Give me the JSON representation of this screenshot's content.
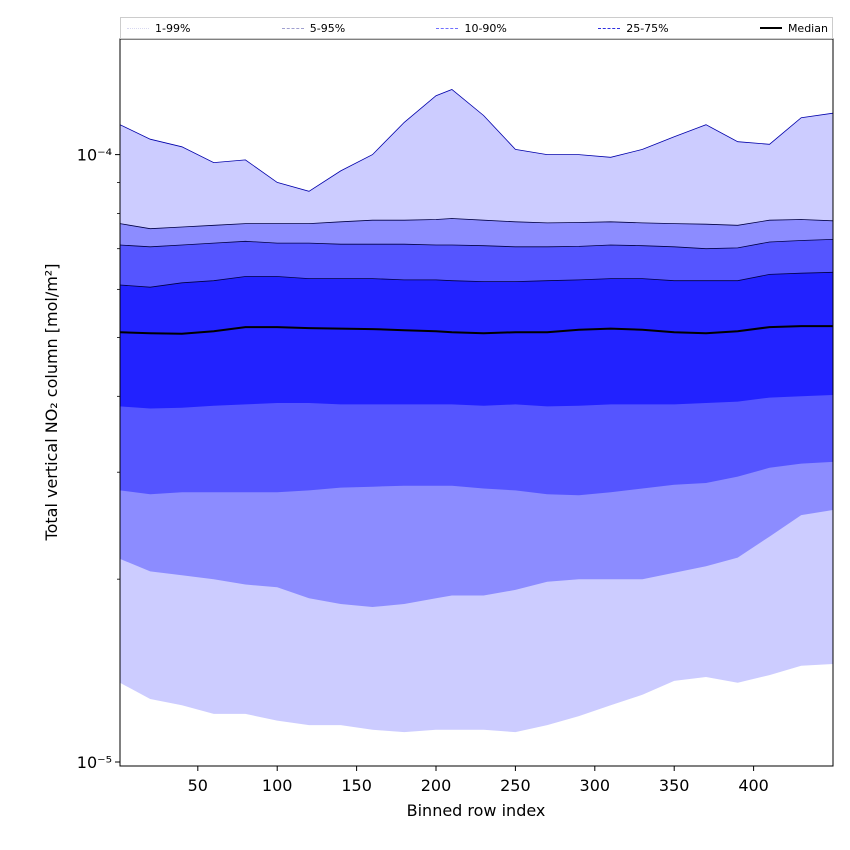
{
  "chart_data": {
    "type": "area",
    "xlabel": "Binned row index",
    "ylabel": "Total vertical NO₂ column [mol/m²]",
    "xlim": [
      1,
      450
    ],
    "ylim": [
      9.85e-06,
      0.000155
    ],
    "y_scale": "log",
    "x_ticks": [
      50,
      100,
      150,
      200,
      250,
      300,
      350,
      400
    ],
    "y_ticks": [
      {
        "value": 1e-05,
        "label": "10⁻⁵"
      },
      {
        "value": 0.0001,
        "label": "10⁻⁴"
      }
    ],
    "legend": {
      "placement": "top",
      "entries": [
        {
          "label": "1-99%",
          "style": "dotted",
          "color": "#d8d8f0"
        },
        {
          "label": "5-95%",
          "style": "dashed",
          "color": "#a0a0d0"
        },
        {
          "label": "10-90%",
          "style": "dashed",
          "color": "#7070ff"
        },
        {
          "label": "25-75%",
          "style": "dashed",
          "color": "#3030e0"
        },
        {
          "label": "Median",
          "style": "solid",
          "color": "#000000"
        }
      ]
    },
    "x": [
      1,
      20,
      40,
      60,
      80,
      100,
      120,
      140,
      160,
      180,
      200,
      210,
      230,
      250,
      270,
      290,
      310,
      330,
      350,
      370,
      390,
      410,
      430,
      450
    ],
    "series": [
      {
        "name": "1-99%",
        "fill": "#ccccff",
        "lower": [
          1.35e-05,
          1.27e-05,
          1.24e-05,
          1.2e-05,
          1.2e-05,
          1.17e-05,
          1.15e-05,
          1.15e-05,
          1.13e-05,
          1.12e-05,
          1.13e-05,
          1.13e-05,
          1.13e-05,
          1.12e-05,
          1.15e-05,
          1.19e-05,
          1.24e-05,
          1.29e-05,
          1.36e-05,
          1.38e-05,
          1.35e-05,
          1.39e-05,
          1.44e-05,
          1.45e-05
        ],
        "upper": [
          0.000112,
          0.000106,
          0.000103,
          9.7e-05,
          9.8e-05,
          9e-05,
          8.7e-05,
          9.4e-05,
          0.0001,
          0.000113,
          0.000125,
          0.000128,
          0.000116,
          0.000102,
          0.0001,
          0.0001,
          9.9e-05,
          0.000102,
          0.000107,
          0.000112,
          0.000105,
          0.000104,
          0.000115,
          0.000117
        ]
      },
      {
        "name": "5-95%",
        "fill": "#8c8cff",
        "lower": [
          2.16e-05,
          2.06e-05,
          2.03e-05,
          2e-05,
          1.96e-05,
          1.94e-05,
          1.86e-05,
          1.82e-05,
          1.8e-05,
          1.82e-05,
          1.86e-05,
          1.88e-05,
          1.88e-05,
          1.92e-05,
          1.98e-05,
          2e-05,
          2e-05,
          2e-05,
          2.05e-05,
          2.1e-05,
          2.17e-05,
          2.35e-05,
          2.55e-05,
          2.6e-05
        ],
        "upper": [
          7.7e-05,
          7.55e-05,
          7.6e-05,
          7.65e-05,
          7.7e-05,
          7.7e-05,
          7.7e-05,
          7.75e-05,
          7.8e-05,
          7.8e-05,
          7.82e-05,
          7.85e-05,
          7.8e-05,
          7.75e-05,
          7.72e-05,
          7.73e-05,
          7.75e-05,
          7.72e-05,
          7.7e-05,
          7.68e-05,
          7.65e-05,
          7.8e-05,
          7.82e-05,
          7.78e-05
        ]
      },
      {
        "name": "10-90%",
        "fill": "#5555ff",
        "lower": [
          2.8e-05,
          2.76e-05,
          2.78e-05,
          2.78e-05,
          2.78e-05,
          2.78e-05,
          2.8e-05,
          2.83e-05,
          2.84e-05,
          2.85e-05,
          2.85e-05,
          2.85e-05,
          2.82e-05,
          2.8e-05,
          2.76e-05,
          2.75e-05,
          2.78e-05,
          2.82e-05,
          2.86e-05,
          2.88e-05,
          2.95e-05,
          3.05e-05,
          3.1e-05,
          3.12e-05
        ],
        "upper": [
          7.1e-05,
          7.05e-05,
          7.1e-05,
          7.15e-05,
          7.2e-05,
          7.15e-05,
          7.15e-05,
          7.12e-05,
          7.12e-05,
          7.12e-05,
          7.1e-05,
          7.1e-05,
          7.08e-05,
          7.05e-05,
          7.05e-05,
          7.06e-05,
          7.1e-05,
          7.08e-05,
          7.05e-05,
          7e-05,
          7.02e-05,
          7.18e-05,
          7.22e-05,
          7.25e-05
        ]
      },
      {
        "name": "25-75%",
        "fill": "#2222ff",
        "lower": [
          3.85e-05,
          3.82e-05,
          3.83e-05,
          3.86e-05,
          3.88e-05,
          3.9e-05,
          3.9e-05,
          3.88e-05,
          3.88e-05,
          3.88e-05,
          3.88e-05,
          3.88e-05,
          3.86e-05,
          3.88e-05,
          3.85e-05,
          3.86e-05,
          3.88e-05,
          3.88e-05,
          3.88e-05,
          3.9e-05,
          3.92e-05,
          3.98e-05,
          4e-05,
          4.02e-05
        ],
        "upper": [
          6.1e-05,
          6.05e-05,
          6.15e-05,
          6.2e-05,
          6.3e-05,
          6.3e-05,
          6.25e-05,
          6.25e-05,
          6.25e-05,
          6.22e-05,
          6.22e-05,
          6.2e-05,
          6.18e-05,
          6.18e-05,
          6.2e-05,
          6.22e-05,
          6.25e-05,
          6.25e-05,
          6.2e-05,
          6.2e-05,
          6.2e-05,
          6.35e-05,
          6.38e-05,
          6.4e-05
        ]
      },
      {
        "name": "Median",
        "color": "#000000",
        "values": [
          5.1e-05,
          5.08e-05,
          5.07e-05,
          5.12e-05,
          5.2e-05,
          5.2e-05,
          5.18e-05,
          5.17e-05,
          5.16e-05,
          5.14e-05,
          5.12e-05,
          5.1e-05,
          5.08e-05,
          5.1e-05,
          5.1e-05,
          5.15e-05,
          5.17e-05,
          5.15e-05,
          5.1e-05,
          5.08e-05,
          5.12e-05,
          5.2e-05,
          5.22e-05,
          5.22e-05
        ]
      }
    ]
  }
}
